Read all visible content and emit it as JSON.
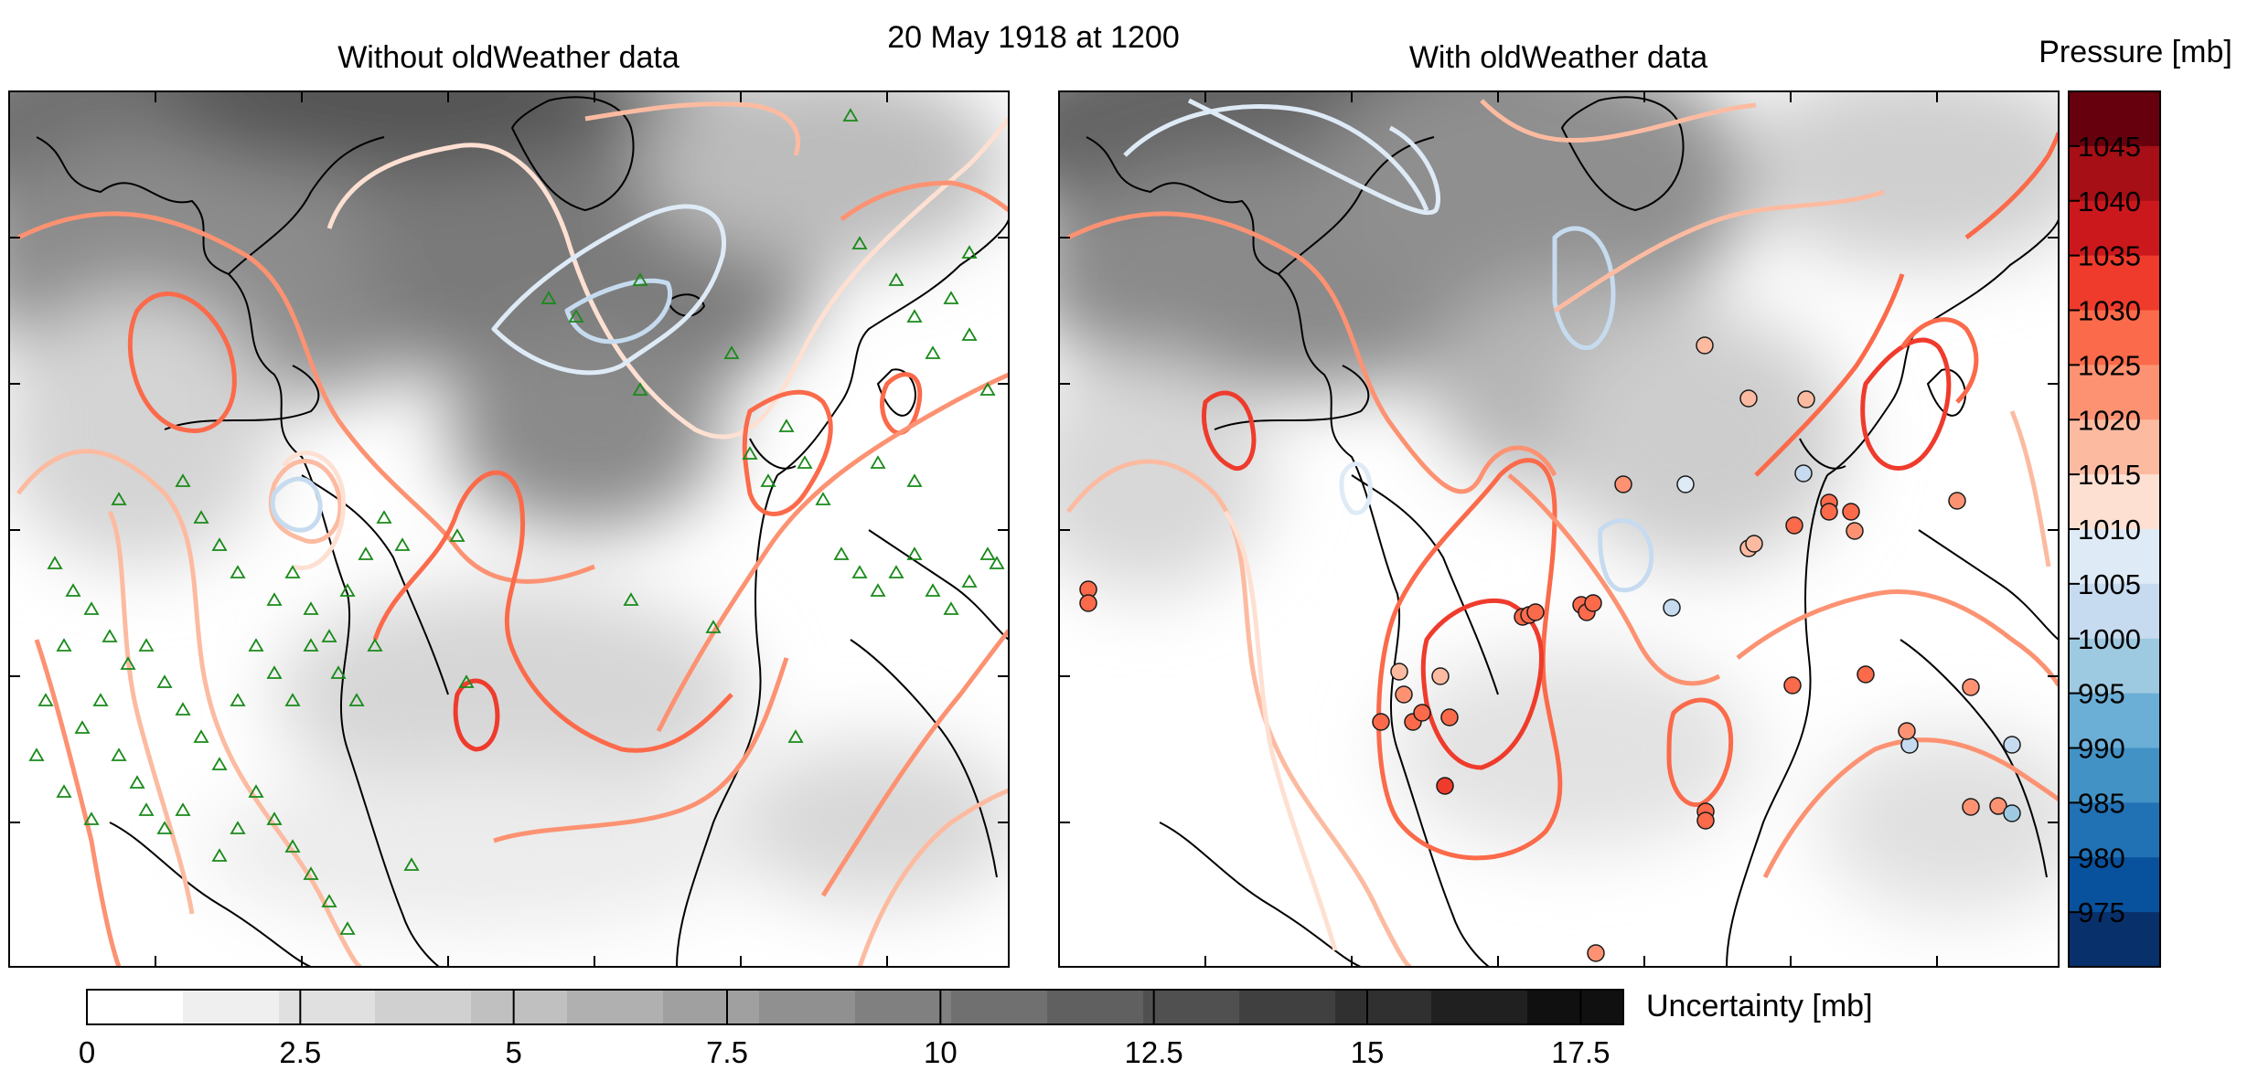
{
  "figure": {
    "title": "20 May 1918 at 1200",
    "panels": [
      {
        "id": "without",
        "title": "Without oldWeather data"
      },
      {
        "id": "with",
        "title": "With oldWeather data"
      }
    ]
  },
  "pressure_colorbar": {
    "label": "Pressure [mb]",
    "ticks": [
      "1045",
      "1040",
      "1035",
      "1030",
      "1025",
      "1020",
      "1015",
      "1010",
      "1005",
      "1000",
      "995",
      "990",
      "985",
      "980",
      "975"
    ],
    "colors": [
      "#67000d",
      "#a50f15",
      "#cb181d",
      "#ef3b2c",
      "#fb6a4a",
      "#fc9272",
      "#fcbba1",
      "#fee0d2",
      "#deebf7",
      "#c6dbef",
      "#9ecae1",
      "#6baed6",
      "#4292c6",
      "#2171b5",
      "#08519c",
      "#08306b"
    ]
  },
  "uncertainty_colorbar": {
    "label": "Uncertainty [mb]",
    "ticks": [
      "0",
      "2.5",
      "5",
      "7.5",
      "10",
      "12.5",
      "15",
      "17.5"
    ],
    "range": [
      0,
      18
    ],
    "colors": [
      "#ffffff",
      "#efefef",
      "#e0e0e0",
      "#d0d0d0",
      "#c0c0c0",
      "#b0b0b0",
      "#a0a0a0",
      "#909090",
      "#808080",
      "#707070",
      "#606060",
      "#505050",
      "#404040",
      "#303030",
      "#202020",
      "#101010"
    ]
  },
  "chart_data": {
    "type": "map",
    "contour_style": "isobars colored by pressure; grey shading = uncertainty",
    "observation_markers": {
      "without_panel": "green triangles (land stations)",
      "with_panel": "circles colored by observed pressure (oldWeather ship observations)"
    },
    "pressure_range": [
      970,
      1050
    ],
    "uncertainty_range": [
      0,
      18
    ]
  }
}
